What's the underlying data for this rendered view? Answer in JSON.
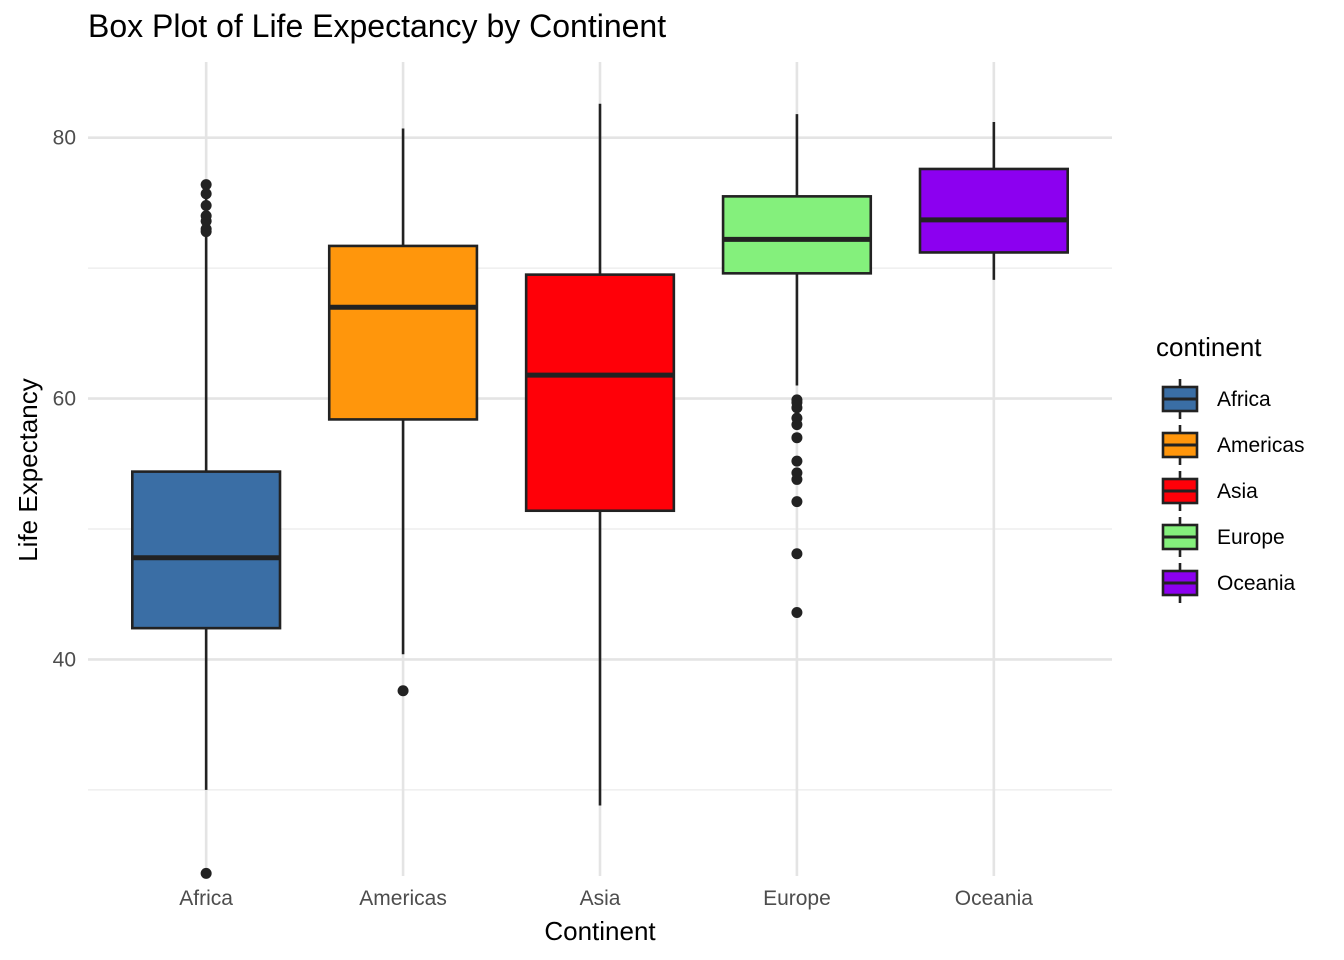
{
  "chart_data": {
    "type": "box",
    "title": "Box Plot of Life Expectancy by Continent",
    "xlabel": "Continent",
    "ylabel": "Life Expectancy",
    "ylim": [
      23.4,
      85.8
    ],
    "yticks": [
      40,
      60,
      80
    ],
    "grid": true,
    "legend": {
      "title": "continent",
      "placement": "right",
      "items": [
        "Africa",
        "Americas",
        "Asia",
        "Europe",
        "Oceania"
      ]
    },
    "categories": [
      "Africa",
      "Americas",
      "Asia",
      "Europe",
      "Oceania"
    ],
    "series": [
      {
        "name": "Africa",
        "color": "#3A6EA5",
        "min": 30.0,
        "q1": 42.4,
        "median": 47.8,
        "q3": 54.4,
        "max": 76.4,
        "outliers": [
          23.6,
          72.8,
          73.0,
          73.6,
          74.0,
          74.8,
          75.7,
          76.4
        ]
      },
      {
        "name": "Americas",
        "color": "#FF960C",
        "min": 40.4,
        "q1": 58.4,
        "median": 67.0,
        "q3": 71.7,
        "max": 80.7,
        "outliers": [
          37.6
        ]
      },
      {
        "name": "Asia",
        "color": "#FF0008",
        "min": 28.8,
        "q1": 51.4,
        "median": 61.8,
        "q3": 69.5,
        "max": 82.6,
        "outliers": []
      },
      {
        "name": "Europe",
        "color": "#84F07C",
        "min": 61.0,
        "q1": 69.6,
        "median": 72.2,
        "q3": 75.5,
        "max": 81.8,
        "outliers": [
          43.6,
          48.1,
          52.1,
          53.8,
          54.3,
          55.2,
          57.0,
          58.0,
          58.5,
          59.3,
          59.7,
          59.9
        ]
      },
      {
        "name": "Oceania",
        "color": "#8C00F0",
        "min": 69.1,
        "q1": 71.2,
        "median": 73.7,
        "q3": 77.6,
        "max": 81.2,
        "outliers": []
      }
    ]
  }
}
